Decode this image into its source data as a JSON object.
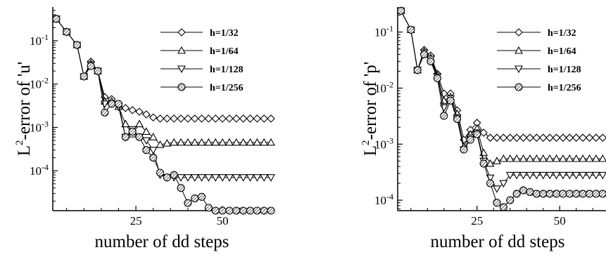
{
  "chart_data": [
    {
      "type": "line",
      "xlabel": "number of dd steps",
      "ylabel_prefix": "L",
      "ylabel_sup": "2",
      "ylabel_rest": "-error of 'u'",
      "yscale": "log",
      "xlim": [
        1,
        64
      ],
      "ylim": [
        1.2e-05,
        0.6
      ],
      "xticks": [
        {
          "value": 25,
          "label": "25"
        },
        {
          "value": 50,
          "label": "50"
        }
      ],
      "yticks": [
        {
          "value": 0.1,
          "base": "10",
          "exp": "-1"
        },
        {
          "value": 0.01,
          "base": "10",
          "exp": "-2"
        },
        {
          "value": 0.001,
          "base": "10",
          "exp": "-3"
        },
        {
          "value": 0.0001,
          "base": "10",
          "exp": "-4"
        }
      ],
      "legend_position": "top-right",
      "series": [
        {
          "name": "h=1/32",
          "marker": "diamond",
          "x": [
            2,
            5,
            8,
            10,
            12,
            14,
            16,
            18,
            20,
            22,
            24,
            26,
            28,
            30,
            32,
            34,
            36,
            38,
            40,
            42,
            44,
            46,
            48,
            50,
            52,
            54,
            56,
            58,
            60,
            62,
            64
          ],
          "y": [
            0.32,
            0.16,
            0.08,
            0.015,
            0.033,
            0.02,
            0.005,
            0.0045,
            0.0032,
            0.0028,
            0.0025,
            0.0023,
            0.002,
            0.0017,
            0.0016,
            0.0016,
            0.0016,
            0.0016,
            0.0016,
            0.0016,
            0.0016,
            0.0016,
            0.0016,
            0.0016,
            0.0016,
            0.0016,
            0.0016,
            0.0016,
            0.0016,
            0.0016,
            0.0016
          ]
        },
        {
          "name": "h=1/64",
          "marker": "triangle-up",
          "x": [
            2,
            5,
            8,
            10,
            12,
            14,
            16,
            18,
            20,
            22,
            24,
            26,
            28,
            30,
            32,
            34,
            36,
            38,
            40,
            42,
            44,
            46,
            48,
            50,
            52,
            54,
            56,
            58,
            60,
            62,
            64
          ],
          "y": [
            0.32,
            0.16,
            0.08,
            0.015,
            0.03,
            0.02,
            0.004,
            0.004,
            0.003,
            0.0012,
            0.0007,
            0.0012,
            0.0008,
            0.0006,
            0.0004,
            0.00043,
            0.00045,
            0.00045,
            0.00045,
            0.00045,
            0.00045,
            0.00045,
            0.00045,
            0.00045,
            0.00045,
            0.00045,
            0.00045,
            0.00045,
            0.00045,
            0.00045,
            0.00045
          ]
        },
        {
          "name": "h=1/128",
          "marker": "triangle-down",
          "x": [
            2,
            5,
            8,
            10,
            12,
            14,
            16,
            18,
            20,
            22,
            24,
            26,
            28,
            30,
            32,
            34,
            36,
            38,
            40,
            42,
            44,
            46,
            48,
            50,
            52,
            54,
            56,
            58,
            60,
            62,
            64
          ],
          "y": [
            0.32,
            0.16,
            0.08,
            0.015,
            0.028,
            0.02,
            0.0035,
            0.0035,
            0.003,
            0.0006,
            0.0009,
            0.0006,
            0.0005,
            0.0003,
            8e-05,
            7e-05,
            7e-05,
            7e-05,
            7e-05,
            7e-05,
            7e-05,
            7e-05,
            7e-05,
            7e-05,
            7e-05,
            7e-05,
            7e-05,
            7e-05,
            7e-05,
            7e-05,
            7e-05
          ]
        },
        {
          "name": "h=1/256",
          "marker": "circle-hatched",
          "x": [
            2,
            5,
            8,
            10,
            12,
            14,
            16,
            18,
            20,
            22,
            24,
            26,
            28,
            30,
            32,
            34,
            36,
            38,
            40,
            42,
            44,
            46,
            48,
            50,
            52,
            54,
            56,
            58,
            60,
            62,
            64
          ],
          "y": [
            0.32,
            0.16,
            0.08,
            0.015,
            0.026,
            0.02,
            0.0022,
            0.0035,
            0.0035,
            0.0006,
            0.0008,
            0.0006,
            0.0003,
            0.0002,
            9e-05,
            7e-05,
            8e-05,
            4e-05,
            1.8e-05,
            2.3e-05,
            2.5e-05,
            1.4e-05,
            1.2e-05,
            1.2e-05,
            1.2e-05,
            1.2e-05,
            1.2e-05,
            1.2e-05,
            1.2e-05,
            1.2e-05,
            1.2e-05
          ]
        }
      ]
    },
    {
      "type": "line",
      "xlabel": "number of dd steps",
      "ylabel_prefix": "L",
      "ylabel_sup": "2",
      "ylabel_rest": "-error of 'p'",
      "yscale": "log",
      "xlim": [
        1,
        64
      ],
      "ylim": [
        6.5e-05,
        0.28
      ],
      "xticks": [
        {
          "value": 25,
          "label": "25"
        },
        {
          "value": 50,
          "label": "50"
        }
      ],
      "yticks": [
        {
          "value": 0.1,
          "base": "10",
          "exp": "-1"
        },
        {
          "value": 0.01,
          "base": "10",
          "exp": "-2"
        },
        {
          "value": 0.001,
          "base": "10",
          "exp": "-3"
        },
        {
          "value": 0.0001,
          "base": "10",
          "exp": "-4"
        }
      ],
      "legend_position": "top-right",
      "series": [
        {
          "name": "h=1/32",
          "marker": "diamond",
          "x": [
            2,
            5,
            7,
            9,
            11,
            13,
            15,
            17,
            19,
            21,
            23,
            25,
            27,
            29,
            31,
            33,
            35,
            37,
            39,
            41,
            43,
            45,
            47,
            49,
            51,
            53,
            55,
            57,
            59,
            61,
            63
          ],
          "y": [
            0.24,
            0.11,
            0.021,
            0.048,
            0.038,
            0.018,
            0.008,
            0.008,
            0.004,
            0.0012,
            0.0018,
            0.0024,
            0.0016,
            0.0013,
            0.0013,
            0.0013,
            0.0013,
            0.0013,
            0.0013,
            0.0013,
            0.0013,
            0.0013,
            0.0013,
            0.0013,
            0.0013,
            0.0013,
            0.0013,
            0.0013,
            0.0013,
            0.0013,
            0.0013
          ]
        },
        {
          "name": "h=1/64",
          "marker": "triangle-up",
          "x": [
            2,
            5,
            7,
            9,
            11,
            13,
            15,
            17,
            19,
            21,
            23,
            25,
            27,
            29,
            31,
            33,
            35,
            37,
            39,
            41,
            43,
            45,
            47,
            49,
            51,
            53,
            55,
            57,
            59,
            61,
            63
          ],
          "y": [
            0.24,
            0.11,
            0.021,
            0.045,
            0.035,
            0.017,
            0.006,
            0.007,
            0.0035,
            0.0009,
            0.0015,
            0.0019,
            0.0007,
            0.00045,
            0.0005,
            0.00055,
            0.00055,
            0.00055,
            0.00055,
            0.00055,
            0.00055,
            0.00055,
            0.00055,
            0.00055,
            0.00055,
            0.00055,
            0.00055,
            0.00055,
            0.00055,
            0.00055,
            0.00055
          ]
        },
        {
          "name": "h=1/128",
          "marker": "triangle-down",
          "x": [
            2,
            5,
            7,
            9,
            11,
            13,
            15,
            17,
            19,
            21,
            23,
            25,
            27,
            29,
            31,
            33,
            35,
            37,
            39,
            41,
            43,
            45,
            47,
            49,
            51,
            53,
            55,
            57,
            59,
            61,
            63
          ],
          "y": [
            0.24,
            0.11,
            0.021,
            0.043,
            0.033,
            0.016,
            0.0045,
            0.0065,
            0.003,
            0.0008,
            0.0013,
            0.0016,
            0.0005,
            0.00025,
            0.00016,
            0.0002,
            0.00028,
            0.00028,
            0.00028,
            0.00028,
            0.00028,
            0.00028,
            0.00028,
            0.00028,
            0.00028,
            0.00028,
            0.00028,
            0.00028,
            0.00028,
            0.00028,
            0.00028
          ]
        },
        {
          "name": "h=1/256",
          "marker": "circle-hatched",
          "x": [
            2,
            5,
            7,
            9,
            11,
            13,
            15,
            17,
            19,
            21,
            23,
            25,
            27,
            29,
            31,
            33,
            35,
            37,
            39,
            41,
            43,
            45,
            47,
            49,
            51,
            53,
            55,
            57,
            59,
            61,
            63
          ],
          "y": [
            0.24,
            0.11,
            0.021,
            0.04,
            0.03,
            0.015,
            0.0032,
            0.006,
            0.0028,
            0.0008,
            0.0012,
            0.0015,
            0.00045,
            0.0002,
            9e-05,
            7.5e-05,
            0.0001,
            0.00013,
            0.00015,
            0.00014,
            0.00013,
            0.00013,
            0.00013,
            0.00013,
            0.00013,
            0.00013,
            0.00013,
            0.00013,
            0.00013,
            0.00013,
            0.00013
          ]
        }
      ]
    }
  ]
}
